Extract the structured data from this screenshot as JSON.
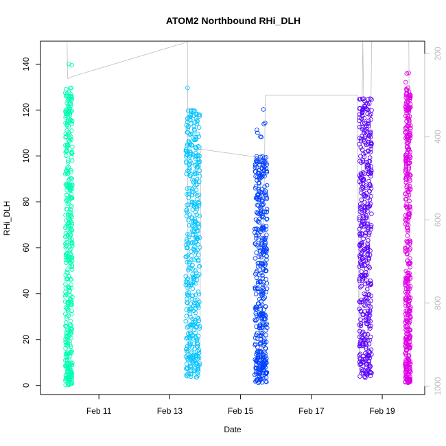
{
  "chart_data": {
    "type": "scatter",
    "title": "ATOM2 Northbound RHi_DLH",
    "xlabel": "Date",
    "ylabel": "RHi_DLH",
    "x_ticks": [
      "Feb 11",
      "Feb 13",
      "Feb 15",
      "Feb 17",
      "Feb 19"
    ],
    "x_tick_days": [
      11,
      13,
      15,
      17,
      19
    ],
    "xlim_days": [
      9.35,
      20.2
    ],
    "ylim": [
      -4,
      150
    ],
    "y_ticks": [
      0,
      20,
      40,
      60,
      80,
      100,
      120,
      140
    ],
    "right_axis": {
      "ticks": [
        200,
        400,
        600,
        800,
        1000
      ],
      "reversed": true,
      "range": [
        170,
        1020
      ],
      "color": "#bebebe"
    },
    "marker": "open-circle",
    "grid": false,
    "legend": "none",
    "series": [
      {
        "color": "#00FFB2",
        "x_day": [
          10.05,
          10.25
        ],
        "y_range": [
          0,
          145
        ],
        "dense_y_range": [
          0,
          130
        ]
      },
      {
        "color": "#00C3FF",
        "x_day": [
          13.45,
          13.85
        ],
        "y_range": [
          3,
          131
        ],
        "dense_y_range": [
          8,
          120
        ]
      },
      {
        "color": "#0040FF",
        "x_day": [
          15.4,
          15.75
        ],
        "y_range": [
          1,
          124
        ],
        "dense_y_range": [
          2,
          100
        ]
      },
      {
        "color": "#5A00FF",
        "x_day": [
          18.35,
          18.7
        ],
        "y_range": [
          3,
          130
        ],
        "dense_y_range": [
          5,
          125
        ]
      },
      {
        "color": "#E000E8",
        "x_day": [
          19.65,
          19.8
        ],
        "y_range": [
          1,
          138
        ],
        "dense_y_range": [
          1,
          130
        ]
      }
    ],
    "pressure_line": {
      "color": "#bebebe",
      "points": [
        [
          10.1,
          170
        ],
        [
          10.12,
          260
        ],
        [
          10.25,
          255
        ],
        [
          13.5,
          172
        ],
        [
          13.52,
          970
        ],
        [
          13.85,
          960
        ],
        [
          13.88,
          430
        ],
        [
          15.55,
          450
        ],
        [
          15.6,
          990
        ],
        [
          15.7,
          300
        ],
        [
          18.3,
          300
        ],
        [
          18.35,
          970
        ],
        [
          18.45,
          170
        ],
        [
          18.6,
          980
        ],
        [
          18.7,
          170
        ],
        [
          19.75,
          170
        ],
        [
          19.8,
          990
        ]
      ]
    }
  }
}
